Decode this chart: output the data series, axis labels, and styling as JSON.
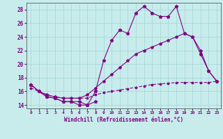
{
  "xlabel": "Windchill (Refroidissement éolien,°C)",
  "bg_color": "#c8ecec",
  "grid_color": "#a8d8d8",
  "line_color": "#800080",
  "xlim": [
    -0.5,
    23.5
  ],
  "ylim": [
    13.5,
    29.0
  ],
  "yticks": [
    14,
    16,
    18,
    20,
    22,
    24,
    26,
    28
  ],
  "xticks": [
    0,
    1,
    2,
    3,
    4,
    5,
    6,
    7,
    8,
    9,
    10,
    11,
    12,
    13,
    14,
    15,
    16,
    17,
    18,
    19,
    20,
    21,
    22,
    23
  ],
  "series_upper": {
    "x": [
      0,
      1,
      2,
      3,
      4,
      5,
      6,
      7,
      8,
      9,
      10,
      11,
      12,
      13,
      14,
      15,
      16,
      17,
      18,
      19,
      20,
      21,
      22,
      23
    ],
    "y": [
      17,
      16,
      15.2,
      15,
      14.5,
      14.5,
      14.5,
      14,
      16,
      20.5,
      23.5,
      25,
      24.5,
      27.5,
      28.5,
      27.5,
      27,
      27,
      28.5,
      24.5,
      24,
      21.5,
      19,
      17.5
    ]
  },
  "series_lower_short": {
    "x": [
      0,
      1,
      2,
      3,
      4,
      5,
      6,
      7,
      8
    ],
    "y": [
      17,
      16,
      15.2,
      15,
      14.5,
      14.5,
      14,
      14,
      14.5
    ]
  },
  "series_diag_low": {
    "x": [
      0,
      1,
      2,
      3,
      4,
      5,
      6,
      7,
      8,
      9,
      10,
      11,
      12,
      13,
      14,
      15,
      16,
      17,
      18,
      19,
      20,
      21,
      22,
      23
    ],
    "y": [
      16.5,
      16,
      15.5,
      15.2,
      15,
      15,
      15,
      15,
      15.5,
      15.8,
      16,
      16.2,
      16.4,
      16.6,
      16.8,
      17,
      17.1,
      17.2,
      17.3,
      17.3,
      17.3,
      17.3,
      17.3,
      17.5
    ]
  },
  "series_diag_high": {
    "x": [
      0,
      1,
      2,
      3,
      4,
      5,
      6,
      7,
      8,
      9,
      10,
      11,
      12,
      13,
      14,
      15,
      16,
      17,
      18,
      19,
      20,
      21,
      22,
      23
    ],
    "y": [
      17,
      16,
      15.5,
      15.2,
      15,
      15,
      15,
      15.5,
      16.5,
      17.5,
      18.5,
      19.5,
      20.5,
      21.5,
      22,
      22.5,
      23,
      23.5,
      24,
      24.5,
      24,
      22,
      19,
      17.5
    ]
  }
}
